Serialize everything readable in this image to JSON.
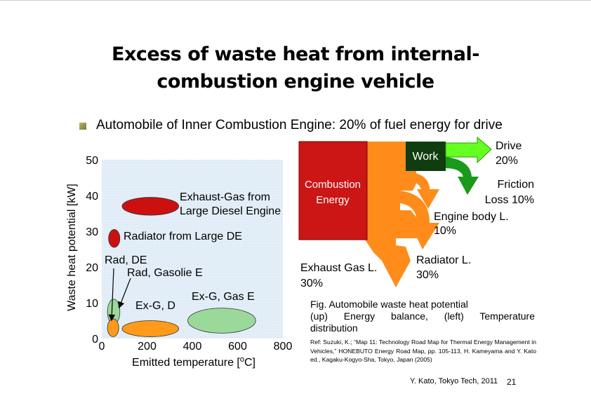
{
  "title_line1": "Excess of waste heat from internal-",
  "title_line2": "combustion engine vehicle",
  "bullet": "Automobile of Inner Combustion Engine: 20% of fuel energy for drive",
  "chart_data": {
    "type": "scatter",
    "xlabel": "Emitted temperature [°C]",
    "xlabel_parts": [
      "Emitted temperature [",
      "o",
      "C]"
    ],
    "ylabel": "Waste heat potential [kW]",
    "xlim": [
      0,
      800
    ],
    "ylim": [
      0,
      50
    ],
    "xticks": [
      "0",
      "200",
      "400",
      "600",
      "800"
    ],
    "yticks": [
      "0",
      "10",
      "20",
      "30",
      "40",
      "50"
    ],
    "ellipses": [
      {
        "label": "Exhaust-Gas from Large Diesel Engine",
        "label_lines": [
          "Exhaust-Gas from",
          "Large Diesel Engine"
        ],
        "x_range": [
          90,
          340
        ],
        "y_range": [
          34.5,
          39.5
        ],
        "color": "#cc1010"
      },
      {
        "label": "Radiator from Large DE",
        "label_lines": [
          "Radiator from Large DE"
        ],
        "x_range": [
          30,
          80
        ],
        "y_range": [
          25.5,
          30.5
        ],
        "color": "#cc1010"
      },
      {
        "label": "Rad, Gasolie E",
        "label_lines": [
          "Rad, Gasolie E"
        ],
        "x_range": [
          25,
          80
        ],
        "y_range": [
          4,
          11
        ],
        "color": "#9ad99a"
      },
      {
        "label": "Rad, DE",
        "label_lines": [
          "Rad, DE"
        ],
        "x_range": [
          25,
          75
        ],
        "y_range": [
          0.5,
          5.5
        ],
        "color": "#ff9a1a"
      },
      {
        "label": "Ex-G, D",
        "label_lines": [
          "Ex-G, D"
        ],
        "x_range": [
          90,
          340
        ],
        "y_range": [
          0.5,
          5
        ],
        "color": "#ff9a1a"
      },
      {
        "label": "Ex-G, Gas E",
        "label_lines": [
          "Ex-G, Gas E"
        ],
        "x_range": [
          380,
          680
        ],
        "y_range": [
          1.5,
          8.5
        ],
        "color": "#9ad99a"
      }
    ]
  },
  "diagram": {
    "source_line1": "Combustion",
    "source_line2": "Energy",
    "work": "Work",
    "drive": "Drive",
    "drive_pct": "20%",
    "friction": "Friction",
    "friction_pct": "Loss 10%",
    "engine_body": "Engine body L.",
    "engine_body_pct": "10%",
    "radiator": "Radiator L.",
    "radiator_pct": "30%",
    "exhaust": "Exhaust Gas L.",
    "exhaust_pct": "30%",
    "colors": {
      "source": "#cc1515",
      "loss": "#ff8c1a",
      "work": "#0f3d0f",
      "drive": "#66ff22",
      "friction": "#1a9a1a"
    }
  },
  "caption_line1": "Fig. Automobile waste heat potential",
  "caption_line2": "(up)  Energy  balance,  (left)  Temperature",
  "caption_line3": "distribution",
  "reference": "Ref: Suzuki, K.; “Map 11: Technology Road Map for Thermal Energy Management in Vehicles,” HONEBUTO Energy Road Map, pp. 105-113, H. Kameyama and Y. Kato ed., Kagaku-Kogyo-Sha, Tokyo, Japan (2005)",
  "footer": "Y. Kato, Tokyo Tech, 2011",
  "page_number": "21"
}
